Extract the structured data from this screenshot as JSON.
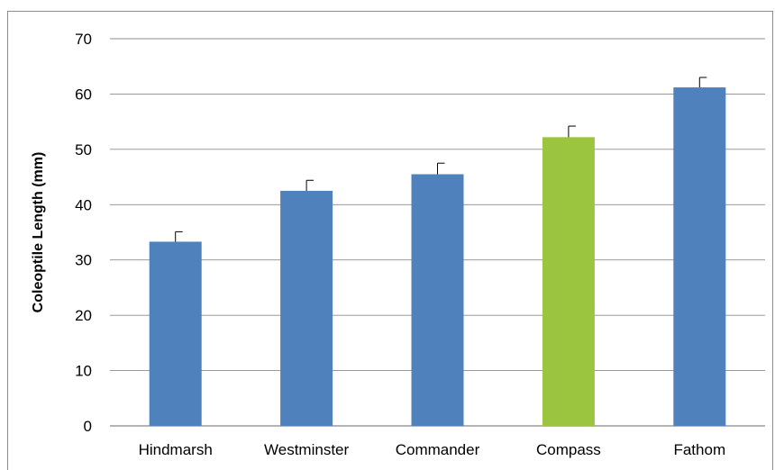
{
  "chart_data": {
    "type": "bar",
    "title": "",
    "xlabel": "",
    "ylabel": "Coleoptile Length (mm)",
    "ylim": [
      0,
      70
    ],
    "yticks": [
      0,
      10,
      20,
      30,
      40,
      50,
      60,
      70
    ],
    "grid": "horizontal",
    "legend": "none",
    "categories": [
      "Hindmarsh",
      "Westminster",
      "Commander",
      "Compass",
      "Fathom"
    ],
    "values": [
      33.3,
      42.5,
      45.5,
      52.2,
      61.2
    ],
    "error_bars": [
      1.8,
      1.9,
      2.0,
      2.0,
      1.8
    ],
    "colors": [
      "#4f81bd",
      "#4f81bd",
      "#4f81bd",
      "#9bc43f",
      "#4f81bd"
    ]
  }
}
